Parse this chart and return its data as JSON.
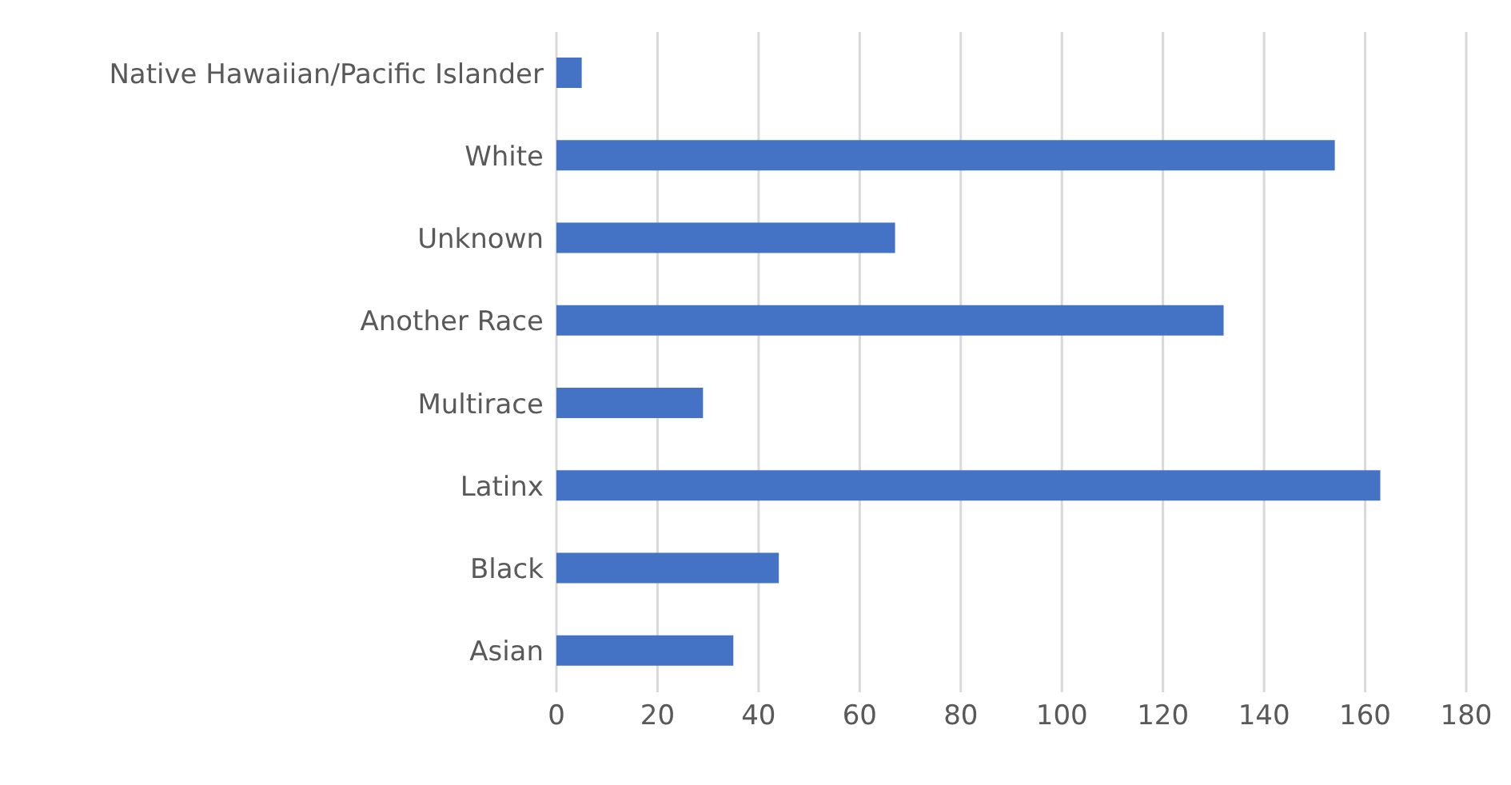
{
  "chart_data": {
    "type": "bar",
    "orientation": "horizontal",
    "categories": [
      "Native Hawaiian/Pacific Islander",
      "White",
      "Unknown",
      "Another Race",
      "Multirace",
      "Latinx",
      "Black",
      "Asian"
    ],
    "values": [
      5,
      154,
      67,
      132,
      29,
      163,
      44,
      35
    ],
    "color": "#4472c4",
    "xlim": [
      0,
      180
    ],
    "xticks": [
      0,
      20,
      40,
      60,
      80,
      100,
      120,
      140,
      160,
      180
    ],
    "grid": "x"
  }
}
